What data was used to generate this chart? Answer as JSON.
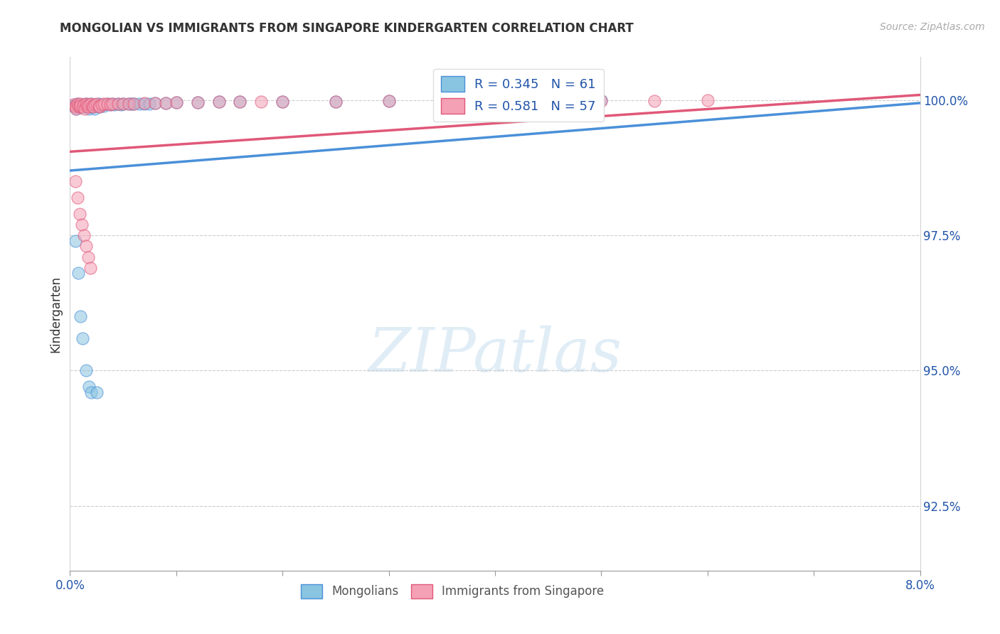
{
  "title": "MONGOLIAN VS IMMIGRANTS FROM SINGAPORE KINDERGARTEN CORRELATION CHART",
  "source": "Source: ZipAtlas.com",
  "ylabel": "Kindergarten",
  "ytick_labels": [
    "92.5%",
    "95.0%",
    "97.5%",
    "100.0%"
  ],
  "ytick_values": [
    0.925,
    0.95,
    0.975,
    1.0
  ],
  "xmin": 0.0,
  "xmax": 0.08,
  "ymin": 0.913,
  "ymax": 1.008,
  "legend_r1": "0.345",
  "legend_n1": "61",
  "legend_r2": "0.581",
  "legend_n2": "57",
  "color_blue": "#89c4e1",
  "color_pink": "#f4a0b5",
  "color_blue_line": "#4a90d9",
  "color_pink_line": "#e05878",
  "color_blue_text": "#2255aa",
  "color_axis_text": "#2255aa",
  "mongolian_x": [
    0.0003,
    0.0005,
    0.0005,
    0.0006,
    0.0007,
    0.0008,
    0.0009,
    0.001,
    0.001,
    0.0012,
    0.0013,
    0.0014,
    0.0015,
    0.0016,
    0.0017,
    0.0018,
    0.0018,
    0.002,
    0.0021,
    0.0022,
    0.0023,
    0.0024,
    0.0025,
    0.0027,
    0.0028,
    0.003,
    0.0032,
    0.0035,
    0.0038,
    0.004,
    0.0042,
    0.0045,
    0.0048,
    0.005,
    0.0055,
    0.0058,
    0.006,
    0.0065,
    0.007,
    0.0075,
    0.008,
    0.009,
    0.01,
    0.012,
    0.014,
    0.016,
    0.02,
    0.025,
    0.03,
    0.035,
    0.04,
    0.045,
    0.05,
    0.0005,
    0.0008,
    0.001,
    0.0012,
    0.0015,
    0.0018,
    0.002,
    0.0025
  ],
  "mongolian_y": [
    0.999,
    0.9988,
    0.9992,
    0.9985,
    0.9993,
    0.999,
    0.9988,
    0.9992,
    0.9987,
    0.999,
    0.9992,
    0.9988,
    0.9993,
    0.999,
    0.9988,
    0.9992,
    0.9985,
    0.9993,
    0.999,
    0.9988,
    0.9985,
    0.9992,
    0.999,
    0.9993,
    0.9988,
    0.9992,
    0.999,
    0.9993,
    0.9992,
    0.9993,
    0.9992,
    0.9993,
    0.9992,
    0.9993,
    0.9994,
    0.9993,
    0.9994,
    0.9994,
    0.9994,
    0.9994,
    0.9995,
    0.9995,
    0.9996,
    0.9996,
    0.9997,
    0.9997,
    0.9998,
    0.9998,
    0.9999,
    0.9999,
    0.9999,
    0.9999,
    1.0,
    0.974,
    0.968,
    0.96,
    0.956,
    0.95,
    0.947,
    0.946,
    0.946
  ],
  "singapore_x": [
    0.0003,
    0.0005,
    0.0005,
    0.0006,
    0.0007,
    0.0008,
    0.0009,
    0.001,
    0.001,
    0.0012,
    0.0013,
    0.0014,
    0.0015,
    0.0016,
    0.0017,
    0.0018,
    0.002,
    0.0021,
    0.0022,
    0.0023,
    0.0025,
    0.0027,
    0.0028,
    0.003,
    0.0032,
    0.0035,
    0.0038,
    0.004,
    0.0045,
    0.005,
    0.0055,
    0.006,
    0.007,
    0.008,
    0.009,
    0.01,
    0.012,
    0.014,
    0.016,
    0.018,
    0.02,
    0.025,
    0.03,
    0.035,
    0.04,
    0.045,
    0.05,
    0.055,
    0.06,
    0.0005,
    0.0007,
    0.0009,
    0.0011,
    0.0013,
    0.0015,
    0.0017,
    0.0019
  ],
  "singapore_y": [
    0.9992,
    0.999,
    0.9988,
    0.9985,
    0.9993,
    0.999,
    0.9988,
    0.9993,
    0.999,
    0.9988,
    0.9992,
    0.9985,
    0.9993,
    0.999,
    0.9988,
    0.9992,
    0.9993,
    0.999,
    0.9988,
    0.9992,
    0.9993,
    0.999,
    0.9988,
    0.9992,
    0.9993,
    0.9993,
    0.9992,
    0.9993,
    0.9994,
    0.9994,
    0.9994,
    0.9994,
    0.9995,
    0.9995,
    0.9995,
    0.9996,
    0.9996,
    0.9997,
    0.9997,
    0.9997,
    0.9998,
    0.9998,
    0.9999,
    0.9999,
    0.9999,
    0.9999,
    0.9999,
    0.9999,
    1.0,
    0.985,
    0.982,
    0.979,
    0.977,
    0.975,
    0.973,
    0.971,
    0.969
  ],
  "mongo_line_x0": 0.0,
  "mongo_line_y0": 0.987,
  "mongo_line_x1": 0.08,
  "mongo_line_y1": 0.9995,
  "sing_line_x0": 0.0,
  "sing_line_y0": 0.9905,
  "sing_line_x1": 0.08,
  "sing_line_y1": 1.001
}
